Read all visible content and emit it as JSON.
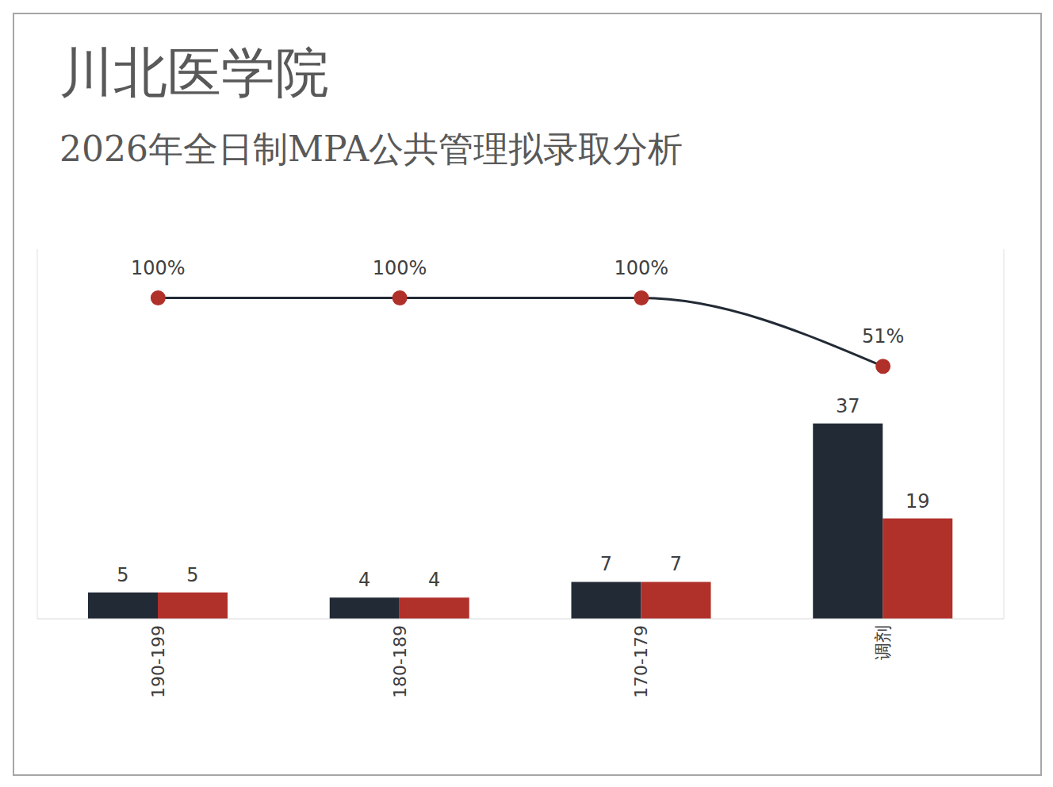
{
  "chart_data": {
    "type": "bar",
    "title": "川北医学院",
    "subtitle": "2026年全日制MPA公共管理拟录取分析",
    "categories": [
      "190-199",
      "180-189",
      "170-179",
      "调剂"
    ],
    "series": [
      {
        "type": "bar",
        "color": "#222a35",
        "values": [
          5,
          4,
          7,
          37
        ]
      },
      {
        "type": "bar",
        "color": "#b0302a",
        "values": [
          5,
          4,
          7,
          19
        ]
      },
      {
        "type": "line",
        "axis": "y2",
        "color": "#222a35",
        "marker": "circle",
        "values": [
          100,
          100,
          100,
          51
        ],
        "value_labels": [
          "100%",
          "100%",
          "100%",
          "51%"
        ]
      }
    ],
    "ylim": [
      0,
      70
    ],
    "y2lim": [
      -130,
      135
    ],
    "data_labels": true,
    "tick_labels": "x",
    "grid": false
  }
}
